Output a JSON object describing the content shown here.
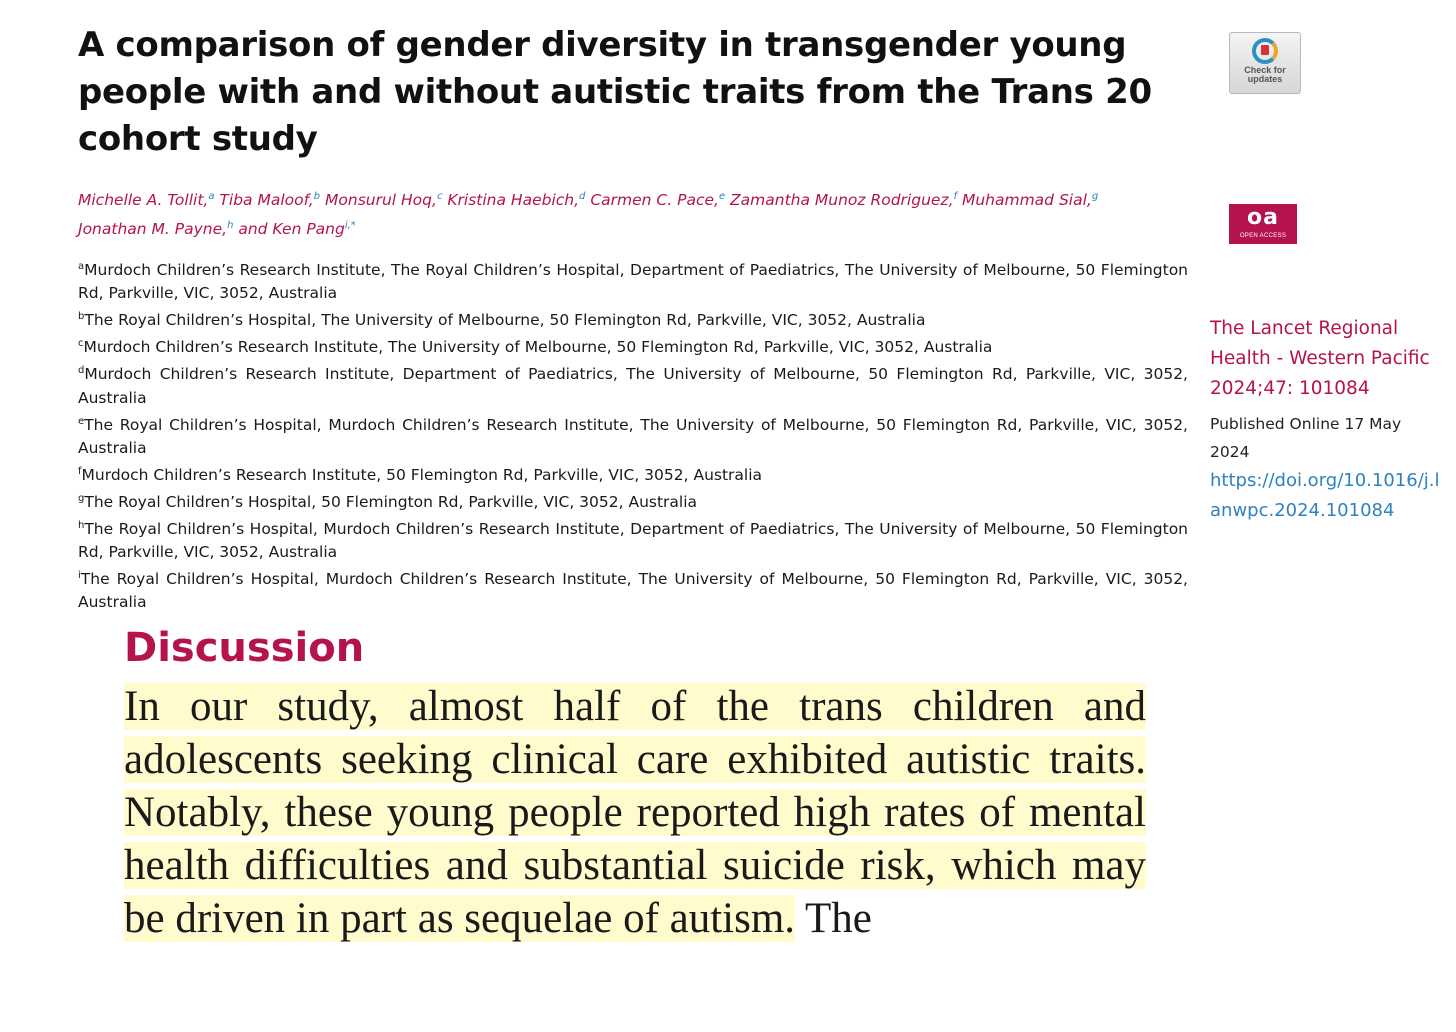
{
  "title": "A comparison of gender diversity in transgender young people with and without autistic traits from the Trans 20 cohort study",
  "check_updates_badge": {
    "line1": "Check for",
    "line2": "updates"
  },
  "open_access_badge": {
    "big": "oa",
    "small": "OPEN ACCESS"
  },
  "authors": [
    {
      "name": "Michelle A. Tollit,",
      "sup": "a"
    },
    {
      "name": "Tiba Maloof,",
      "sup": "b"
    },
    {
      "name": "Monsurul Hoq,",
      "sup": "c"
    },
    {
      "name": "Kristina Haebich,",
      "sup": "d"
    },
    {
      "name": "Carmen C. Pace,",
      "sup": "e"
    },
    {
      "name": "Zamantha Munoz Rodriguez,",
      "sup": "f"
    },
    {
      "name": "Muhammad Sial,",
      "sup": "g"
    },
    {
      "name": "Jonathan M. Payne,",
      "sup": "h"
    },
    {
      "name": "and Ken Pang",
      "sup": "i,*"
    }
  ],
  "affiliations": [
    {
      "sup": "a",
      "text": "Murdoch Children’s Research Institute, The Royal Children’s Hospital, Department of Paediatrics, The University of Melbourne, 50 Flemington Rd, Parkville, VIC, 3052, Australia"
    },
    {
      "sup": "b",
      "text": "The Royal Children’s Hospital, The University of Melbourne, 50 Flemington Rd, Parkville, VIC, 3052, Australia"
    },
    {
      "sup": "c",
      "text": "Murdoch Children’s Research Institute, The University of Melbourne, 50 Flemington Rd, Parkville, VIC, 3052, Australia"
    },
    {
      "sup": "d",
      "text": "Murdoch Children’s Research Institute, Department of Paediatrics, The University of Melbourne, 50 Flemington Rd, Parkville, VIC, 3052, Australia"
    },
    {
      "sup": "e",
      "text": "The Royal Children’s Hospital, Murdoch Children’s Research Institute, The University of Melbourne, 50 Flemington Rd, Parkville, VIC, 3052, Australia"
    },
    {
      "sup": "f",
      "text": "Murdoch Children’s Research Institute, 50 Flemington Rd, Parkville, VIC, 3052, Australia"
    },
    {
      "sup": "g",
      "text": "The Royal Children’s Hospital, 50 Flemington Rd, Parkville, VIC, 3052, Australia"
    },
    {
      "sup": "h",
      "text": "The Royal Children’s Hospital, Murdoch Children’s Research Institute, Department of Paediatrics, The University of Melbourne, 50 Flemington Rd, Parkville, VIC, 3052, Australia"
    },
    {
      "sup": "i",
      "text": "The Royal Children’s Hospital, Murdoch Children’s Research Institute, The University of Melbourne, 50 Flemington Rd, Parkville, VIC, 3052, Australia"
    }
  ],
  "sidebar": {
    "journal": "The Lancet Regional Health - Western Pacific 2024;47: 101084",
    "published": "Published Online 17 May 2024",
    "doi": "https://doi.org/10.1016/j.lanwpc.2024.101084"
  },
  "discussion": {
    "heading": "Discussion",
    "highlighted_text": "In our study, almost half of the trans children and adolescents seeking clinical care exhibited autistic traits. Notably, these young people reported high rates of mental health difficulties and substantial suicide risk, which may be driven in part as sequelae of autism.",
    "trailing_text": " The"
  },
  "colors": {
    "accent": "#b5134e",
    "link": "#2e82c0",
    "highlight": "#fffbcc"
  }
}
